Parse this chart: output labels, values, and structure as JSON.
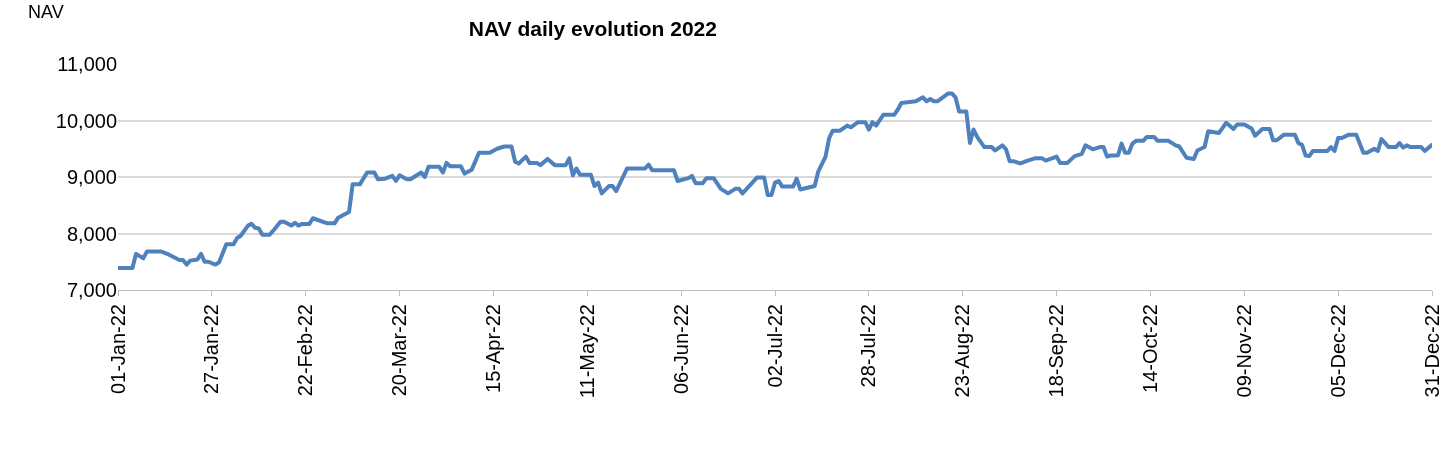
{
  "chart_data": {
    "type": "line",
    "title": "NAV daily evolution 2022",
    "ylabel": "NAV",
    "x": [
      "2022-01-01",
      "2022-01-05",
      "2022-01-06",
      "2022-01-08",
      "2022-01-09",
      "2022-01-13",
      "2022-01-15",
      "2022-01-18",
      "2022-01-19",
      "2022-01-20",
      "2022-01-21",
      "2022-01-23",
      "2022-01-24",
      "2022-01-25",
      "2022-01-26",
      "2022-01-28",
      "2022-01-29",
      "2022-01-31",
      "2022-02-02",
      "2022-02-03",
      "2022-02-04",
      "2022-02-06",
      "2022-02-07",
      "2022-02-08",
      "2022-02-09",
      "2022-02-10",
      "2022-02-12",
      "2022-02-13",
      "2022-02-15",
      "2022-02-16",
      "2022-02-18",
      "2022-02-19",
      "2022-02-20",
      "2022-02-21",
      "2022-02-23",
      "2022-02-24",
      "2022-02-28",
      "2022-03-02",
      "2022-03-03",
      "2022-03-06",
      "2022-03-07",
      "2022-03-09",
      "2022-03-11",
      "2022-03-13",
      "2022-03-14",
      "2022-03-16",
      "2022-03-18",
      "2022-03-19",
      "2022-03-20",
      "2022-03-22",
      "2022-03-23",
      "2022-03-26",
      "2022-03-27",
      "2022-03-28",
      "2022-03-31",
      "2022-04-01",
      "2022-04-02",
      "2022-04-03",
      "2022-04-06",
      "2022-04-07",
      "2022-04-09",
      "2022-04-11",
      "2022-04-14",
      "2022-04-16",
      "2022-04-18",
      "2022-04-20",
      "2022-04-21",
      "2022-04-22",
      "2022-04-24",
      "2022-04-25",
      "2022-04-27",
      "2022-04-28",
      "2022-04-30",
      "2022-05-02",
      "2022-05-05",
      "2022-05-06",
      "2022-05-07",
      "2022-05-08",
      "2022-05-09",
      "2022-05-12",
      "2022-05-13",
      "2022-05-14",
      "2022-05-15",
      "2022-05-17",
      "2022-05-18",
      "2022-05-19",
      "2022-05-22",
      "2022-05-27",
      "2022-05-28",
      "2022-05-29",
      "2022-06-04",
      "2022-06-05",
      "2022-06-08",
      "2022-06-09",
      "2022-06-10",
      "2022-06-12",
      "2022-06-13",
      "2022-06-15",
      "2022-06-17",
      "2022-06-19",
      "2022-06-21",
      "2022-06-22",
      "2022-06-23",
      "2022-06-27",
      "2022-06-29",
      "2022-06-30",
      "2022-07-01",
      "2022-07-02",
      "2022-07-03",
      "2022-07-04",
      "2022-07-07",
      "2022-07-08",
      "2022-07-09",
      "2022-07-13",
      "2022-07-14",
      "2022-07-16",
      "2022-07-17",
      "2022-07-18",
      "2022-07-20",
      "2022-07-22",
      "2022-07-23",
      "2022-07-25",
      "2022-07-27",
      "2022-07-28",
      "2022-07-29",
      "2022-07-30",
      "2022-08-01",
      "2022-08-04",
      "2022-08-05",
      "2022-08-06",
      "2022-08-10",
      "2022-08-12",
      "2022-08-13",
      "2022-08-14",
      "2022-08-15",
      "2022-08-16",
      "2022-08-19",
      "2022-08-20",
      "2022-08-21",
      "2022-08-22",
      "2022-08-24",
      "2022-08-25",
      "2022-08-26",
      "2022-08-27",
      "2022-08-29",
      "2022-08-31",
      "2022-09-01",
      "2022-09-03",
      "2022-09-04",
      "2022-09-05",
      "2022-09-06",
      "2022-09-08",
      "2022-09-10",
      "2022-09-12",
      "2022-09-14",
      "2022-09-15",
      "2022-09-18",
      "2022-09-19",
      "2022-09-21",
      "2022-09-23",
      "2022-09-25",
      "2022-09-26",
      "2022-09-28",
      "2022-09-30",
      "2022-10-01",
      "2022-10-02",
      "2022-10-03",
      "2022-10-05",
      "2022-10-06",
      "2022-10-07",
      "2022-10-08",
      "2022-10-09",
      "2022-10-10",
      "2022-10-12",
      "2022-10-13",
      "2022-10-15",
      "2022-10-16",
      "2022-10-19",
      "2022-10-21",
      "2022-10-22",
      "2022-10-24",
      "2022-10-26",
      "2022-10-27",
      "2022-10-29",
      "2022-10-30",
      "2022-11-02",
      "2022-11-04",
      "2022-11-06",
      "2022-11-07",
      "2022-11-09",
      "2022-11-11",
      "2022-11-12",
      "2022-11-14",
      "2022-11-16",
      "2022-11-17",
      "2022-11-18",
      "2022-11-20",
      "2022-11-23",
      "2022-11-24",
      "2022-11-25",
      "2022-11-26",
      "2022-11-27",
      "2022-11-28",
      "2022-12-02",
      "2022-12-03",
      "2022-12-04",
      "2022-12-05",
      "2022-12-06",
      "2022-12-08",
      "2022-12-10",
      "2022-12-12",
      "2022-12-13",
      "2022-12-15",
      "2022-12-16",
      "2022-12-17",
      "2022-12-19",
      "2022-12-21",
      "2022-12-22",
      "2022-12-23",
      "2022-12-24",
      "2022-12-25",
      "2022-12-28",
      "2022-12-29",
      "2022-12-31"
    ],
    "series": [
      {
        "color": "#4f81bd",
        "values": [
          7390,
          7390,
          7640,
          7560,
          7680,
          7680,
          7630,
          7530,
          7530,
          7450,
          7520,
          7540,
          7640,
          7500,
          7500,
          7450,
          7490,
          7810,
          7810,
          7920,
          7960,
          8140,
          8170,
          8100,
          8090,
          7980,
          7980,
          8050,
          8210,
          8210,
          8140,
          8190,
          8140,
          8170,
          8170,
          8270,
          8180,
          8180,
          8280,
          8380,
          8870,
          8870,
          9080,
          9080,
          8960,
          8970,
          9020,
          8930,
          9030,
          8960,
          8960,
          9080,
          9000,
          9180,
          9180,
          9080,
          9250,
          9190,
          9190,
          9060,
          9130,
          9430,
          9430,
          9500,
          9540,
          9540,
          9270,
          9240,
          9360,
          9250,
          9250,
          9210,
          9320,
          9210,
          9210,
          9330,
          9030,
          9150,
          9040,
          9040,
          8840,
          8900,
          8710,
          8840,
          8840,
          8750,
          9150,
          9150,
          9220,
          9120,
          9120,
          8930,
          8980,
          9020,
          8890,
          8890,
          8980,
          8980,
          8790,
          8710,
          8790,
          8790,
          8710,
          8990,
          8990,
          8680,
          8680,
          8900,
          8930,
          8830,
          8830,
          8970,
          8780,
          8840,
          9100,
          9360,
          9690,
          9820,
          9820,
          9910,
          9880,
          9970,
          9970,
          9840,
          9970,
          9910,
          10100,
          10100,
          10190,
          10310,
          10340,
          10410,
          10340,
          10380,
          10340,
          10340,
          10480,
          10480,
          10410,
          10160,
          10160,
          9600,
          9840,
          9710,
          9530,
          9530,
          9470,
          9560,
          9490,
          9280,
          9280,
          9240,
          9290,
          9330,
          9330,
          9290,
          9360,
          9250,
          9250,
          9370,
          9410,
          9560,
          9490,
          9530,
          9530,
          9360,
          9380,
          9380,
          9590,
          9430,
          9430,
          9590,
          9640,
          9640,
          9710,
          9710,
          9640,
          9640,
          9560,
          9540,
          9340,
          9320,
          9470,
          9530,
          9810,
          9780,
          9960,
          9850,
          9930,
          9930,
          9860,
          9730,
          9850,
          9850,
          9650,
          9650,
          9750,
          9750,
          9600,
          9570,
          9380,
          9370,
          9460,
          9460,
          9530,
          9460,
          9690,
          9690,
          9750,
          9750,
          9430,
          9430,
          9500,
          9460,
          9670,
          9530,
          9530,
          9600,
          9520,
          9560,
          9530,
          9530,
          9460,
          9570
        ]
      }
    ],
    "xlim": [
      "2022-01-01",
      "2022-12-31"
    ],
    "xticks": [
      {
        "value": "2022-01-01",
        "label": "01-Jan-22"
      },
      {
        "value": "2022-01-27",
        "label": "27-Jan-22"
      },
      {
        "value": "2022-02-22",
        "label": "22-Feb-22"
      },
      {
        "value": "2022-03-20",
        "label": "20-Mar-22"
      },
      {
        "value": "2022-04-15",
        "label": "15-Apr-22"
      },
      {
        "value": "2022-05-11",
        "label": "11-May-22"
      },
      {
        "value": "2022-06-06",
        "label": "06-Jun-22"
      },
      {
        "value": "2022-07-02",
        "label": "02-Jul-22"
      },
      {
        "value": "2022-07-28",
        "label": "28-Jul-22"
      },
      {
        "value": "2022-08-23",
        "label": "23-Aug-22"
      },
      {
        "value": "2022-09-18",
        "label": "18-Sep-22"
      },
      {
        "value": "2022-10-14",
        "label": "14-Oct-22"
      },
      {
        "value": "2022-11-09",
        "label": "09-Nov-22"
      },
      {
        "value": "2022-12-05",
        "label": "05-Dec-22"
      },
      {
        "value": "2022-12-31",
        "label": "31-Dec-22"
      }
    ],
    "ylim": [
      7000,
      11000
    ],
    "yticks": [
      {
        "value": 7000,
        "label": "7,000"
      },
      {
        "value": 8000,
        "label": "8,000"
      },
      {
        "value": 9000,
        "label": "9,000"
      },
      {
        "value": 10000,
        "label": "10,000"
      },
      {
        "value": 11000,
        "label": "11,000"
      }
    ],
    "grid": "y",
    "marker": "none",
    "line_style": "solid"
  }
}
